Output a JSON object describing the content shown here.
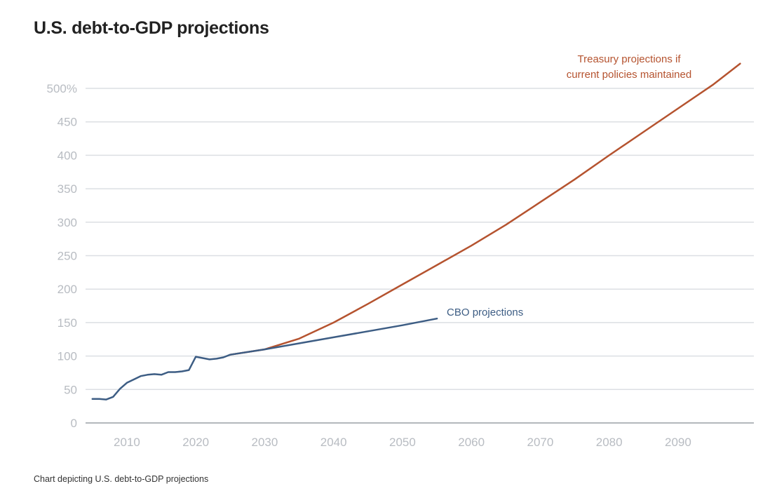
{
  "title": "U.S. debt-to-GDP projections",
  "caption": "Chart depicting U.S. debt-to-GDP projections",
  "colors": {
    "treasury": "#b5532f",
    "cbo": "#3d5d84",
    "grid": "#dcdfe3",
    "axis": "#9aa0a6",
    "tick_text": "#b8bcc2"
  },
  "chart_data": {
    "type": "line",
    "title": "U.S. debt-to-GDP projections",
    "xlabel": "",
    "ylabel": "",
    "xlim": [
      2004,
      2101
    ],
    "ylim": [
      0,
      500
    ],
    "grid": true,
    "x_ticks": [
      2010,
      2020,
      2030,
      2040,
      2050,
      2060,
      2070,
      2080,
      2090
    ],
    "y_ticks": [
      {
        "value": 0,
        "label": "0"
      },
      {
        "value": 50,
        "label": "50"
      },
      {
        "value": 100,
        "label": "100"
      },
      {
        "value": 150,
        "label": "150"
      },
      {
        "value": 200,
        "label": "200"
      },
      {
        "value": 250,
        "label": "250"
      },
      {
        "value": 300,
        "label": "300"
      },
      {
        "value": 350,
        "label": "350"
      },
      {
        "value": 400,
        "label": "400"
      },
      {
        "value": 450,
        "label": "450"
      },
      {
        "value": 500,
        "label": "500%"
      }
    ],
    "series": [
      {
        "name": "Treasury projections if current policies maintained",
        "label_lines": [
          "Treasury projections if",
          "current policies maintained"
        ],
        "color": "#b5532f",
        "x": [
          2025,
          2030,
          2035,
          2040,
          2045,
          2050,
          2055,
          2060,
          2065,
          2070,
          2075,
          2080,
          2085,
          2090,
          2095,
          2099
        ],
        "values": [
          102,
          110,
          126,
          150,
          178,
          207,
          236,
          265,
          296,
          330,
          364,
          400,
          435,
          470,
          505,
          537
        ]
      },
      {
        "name": "CBO projections",
        "label_lines": [
          "CBO projections"
        ],
        "color": "#3d5d84",
        "x": [
          2005,
          2006,
          2007,
          2008,
          2009,
          2010,
          2011,
          2012,
          2013,
          2014,
          2015,
          2016,
          2017,
          2018,
          2019,
          2020,
          2021,
          2022,
          2023,
          2024,
          2025,
          2030,
          2035,
          2040,
          2045,
          2050,
          2055
        ],
        "values": [
          36,
          36,
          35,
          39,
          51,
          60,
          65,
          70,
          72,
          73,
          72,
          76,
          76,
          77,
          79,
          99,
          97,
          95,
          96,
          98,
          102,
          110,
          119,
          128,
          137,
          146,
          156
        ]
      }
    ]
  }
}
